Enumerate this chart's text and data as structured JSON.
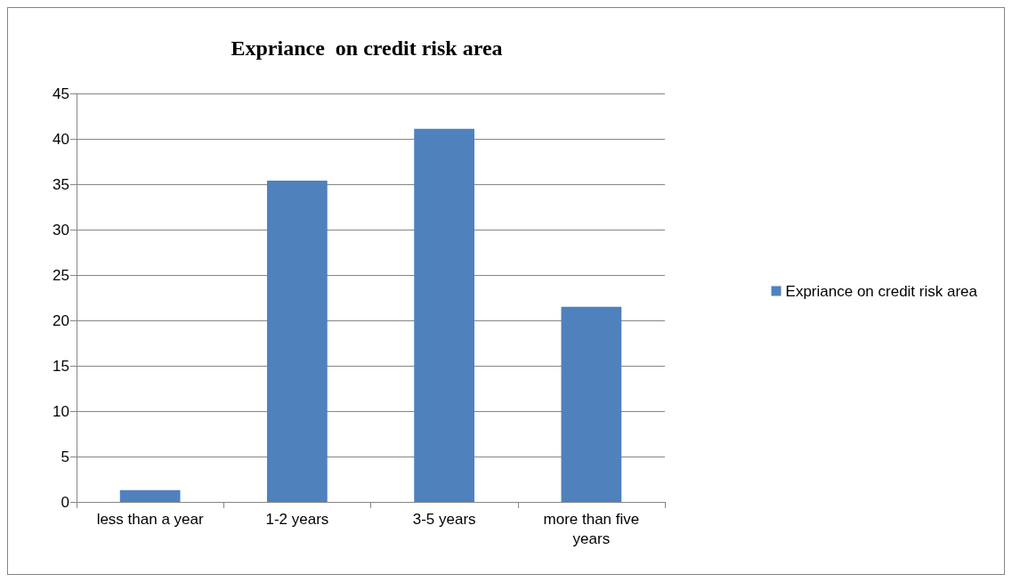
{
  "chart_data": {
    "type": "bar",
    "title": "Expriance  on credit risk area",
    "categories": [
      "less than a year",
      "1-2 years",
      "3-5 years",
      "more than five years"
    ],
    "series": [
      {
        "name": "Expriance on credit risk area",
        "color": "#4f81bd",
        "values": [
          1.3,
          35.4,
          41.1,
          21.5
        ]
      }
    ],
    "ylim": [
      0,
      45
    ],
    "yticks": [
      0,
      5,
      10,
      15,
      20,
      25,
      30,
      35,
      40,
      45
    ],
    "grid": "y",
    "legend": "right"
  }
}
